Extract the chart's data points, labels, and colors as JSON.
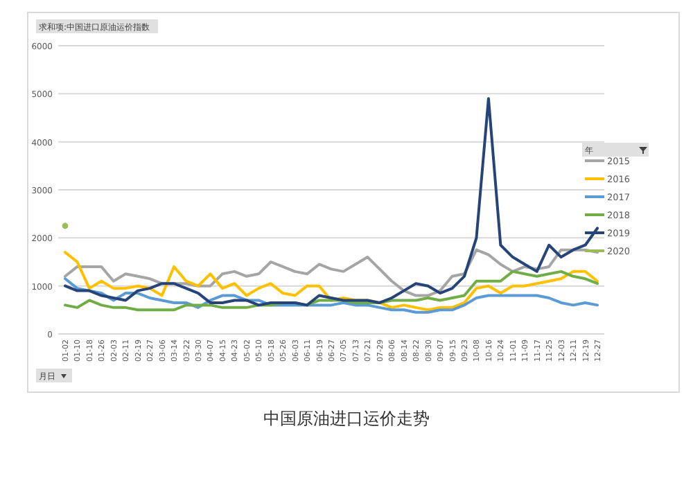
{
  "chart_data": {
    "type": "line",
    "title": "中国原油进口运价走势",
    "ylabel": "求和项:中国进口原油运价指数",
    "xlabel": "月日",
    "legend_title": "年",
    "categories": [
      "01-02",
      "01-10",
      "01-18",
      "01-26",
      "02-03",
      "02-11",
      "02-19",
      "02-27",
      "03-06",
      "03-14",
      "03-22",
      "03-30",
      "04-07",
      "04-15",
      "04-23",
      "05-02",
      "05-10",
      "05-18",
      "05-26",
      "06-03",
      "06-11",
      "06-19",
      "06-27",
      "07-05",
      "07-13",
      "07-21",
      "07-29",
      "08-06",
      "08-14",
      "08-22",
      "08-30",
      "09-07",
      "09-15",
      "09-23",
      "10-08",
      "10-16",
      "10-24",
      "11-01",
      "11-09",
      "11-17",
      "11-25",
      "12-03",
      "12-11",
      "12-19",
      "12-27"
    ],
    "series": [
      {
        "name": "2015",
        "color": "#a5a5a5",
        "values": [
          1200,
          1400,
          1400,
          1400,
          1100,
          1250,
          1200,
          1150,
          1050,
          1050,
          1050,
          1000,
          1000,
          1250,
          1300,
          1200,
          1250,
          1500,
          1400,
          1300,
          1250,
          1450,
          1350,
          1300,
          1450,
          1600,
          1350,
          1100,
          900,
          800,
          800,
          900,
          1200,
          1250,
          1750,
          1650,
          1450,
          1300,
          1400,
          1350,
          1400,
          1750,
          1750,
          1750,
          1700
        ]
      },
      {
        "name": "2016",
        "color": "#ffc000",
        "values": [
          1700,
          1500,
          950,
          1100,
          950,
          950,
          1000,
          950,
          800,
          1400,
          1100,
          1000,
          1250,
          950,
          1050,
          800,
          950,
          1050,
          850,
          800,
          1000,
          1000,
          700,
          750,
          700,
          700,
          650,
          550,
          600,
          550,
          500,
          550,
          550,
          650,
          950,
          1000,
          850,
          1000,
          1000,
          1050,
          1100,
          1150,
          1300,
          1300,
          1100
        ]
      },
      {
        "name": "2017",
        "color": "#5b9bd5",
        "values": [
          1150,
          950,
          900,
          850,
          700,
          850,
          850,
          750,
          700,
          650,
          650,
          550,
          700,
          800,
          800,
          700,
          700,
          600,
          600,
          600,
          600,
          600,
          600,
          650,
          600,
          600,
          550,
          500,
          500,
          450,
          450,
          500,
          500,
          600,
          750,
          800,
          800,
          800,
          800,
          800,
          750,
          650,
          600,
          650,
          600
        ]
      },
      {
        "name": "2018",
        "color": "#70ad47",
        "values": [
          600,
          550,
          700,
          600,
          550,
          550,
          500,
          500,
          500,
          500,
          600,
          600,
          600,
          550,
          550,
          550,
          600,
          600,
          650,
          650,
          600,
          700,
          700,
          700,
          650,
          650,
          650,
          700,
          700,
          700,
          750,
          700,
          750,
          800,
          1100,
          1100,
          1100,
          1300,
          1250,
          1200,
          1250,
          1300,
          1200,
          1150,
          1050
        ]
      },
      {
        "name": "2019",
        "color": "#264478",
        "values": [
          1000,
          900,
          900,
          800,
          750,
          700,
          900,
          950,
          1050,
          1050,
          950,
          850,
          650,
          650,
          700,
          700,
          600,
          650,
          650,
          650,
          600,
          800,
          750,
          700,
          700,
          700,
          650,
          750,
          900,
          1050,
          1000,
          850,
          950,
          1200,
          2000,
          4900,
          1850,
          1600,
          1450,
          1300,
          1850,
          1600,
          1750,
          1850,
          2200
        ]
      },
      {
        "name": "2020",
        "color": "#9bbb59",
        "marker": "circle",
        "values": [
          2250,
          null,
          null,
          null,
          null,
          null,
          null,
          null,
          null,
          null,
          null,
          null,
          null,
          null,
          null,
          null,
          null,
          null,
          null,
          null,
          null,
          null,
          null,
          null,
          null,
          null,
          null,
          null,
          null,
          null,
          null,
          null,
          null,
          null,
          null,
          null,
          null,
          null,
          null,
          null,
          null,
          null,
          null,
          null,
          null
        ]
      }
    ],
    "ylim": [
      0,
      6000
    ],
    "yticks": [
      0,
      1000,
      2000,
      3000,
      4000,
      5000,
      6000
    ],
    "grid": "y",
    "legend": "right"
  }
}
